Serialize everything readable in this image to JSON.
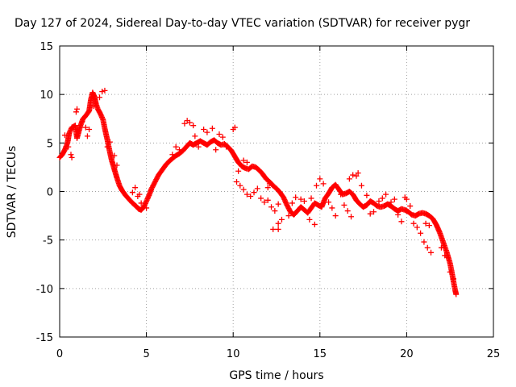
{
  "chart_data": {
    "type": "scatter",
    "title": "Day 127 of 2024, Sidereal Day-to-day VTEC variation (SDTVAR) for receiver pygr",
    "xlabel": "GPS time / hours",
    "ylabel": "SDTVAR / TECUs",
    "xlim": [
      0,
      25
    ],
    "ylim": [
      -15,
      15
    ],
    "xticks": [
      0,
      5,
      10,
      15,
      20,
      25
    ],
    "yticks": [
      -15,
      -10,
      -5,
      0,
      5,
      10,
      15
    ],
    "grid": true,
    "marker": "plus",
    "color": "#ff0000",
    "series": [
      {
        "name": "main",
        "points": [
          [
            0.0,
            3.5
          ],
          [
            0.15,
            3.8
          ],
          [
            0.3,
            4.3
          ],
          [
            0.45,
            5.0
          ],
          [
            0.55,
            6.0
          ],
          [
            0.7,
            6.6
          ],
          [
            0.9,
            6.8
          ],
          [
            1.0,
            5.5
          ],
          [
            1.2,
            6.8
          ],
          [
            1.35,
            7.5
          ],
          [
            1.5,
            7.8
          ],
          [
            1.7,
            8.3
          ],
          [
            1.8,
            9.5
          ],
          [
            1.9,
            10.2
          ],
          [
            2.0,
            9.8
          ],
          [
            2.1,
            9.0
          ],
          [
            2.2,
            8.5
          ],
          [
            2.35,
            8.0
          ],
          [
            2.5,
            7.4
          ],
          [
            2.6,
            6.5
          ],
          [
            2.75,
            5.3
          ],
          [
            2.9,
            4.0
          ],
          [
            3.0,
            3.2
          ],
          [
            3.15,
            2.3
          ],
          [
            3.3,
            1.4
          ],
          [
            3.45,
            0.6
          ],
          [
            3.6,
            0.1
          ],
          [
            3.8,
            -0.4
          ],
          [
            4.0,
            -0.8
          ],
          [
            4.2,
            -1.2
          ],
          [
            4.4,
            -1.5
          ],
          [
            4.55,
            -1.8
          ],
          [
            4.7,
            -1.9
          ],
          [
            4.85,
            -1.6
          ],
          [
            5.0,
            -1.0
          ],
          [
            5.15,
            -0.4
          ],
          [
            5.3,
            0.3
          ],
          [
            5.5,
            1.0
          ],
          [
            5.7,
            1.7
          ],
          [
            5.9,
            2.2
          ],
          [
            6.1,
            2.7
          ],
          [
            6.3,
            3.1
          ],
          [
            6.5,
            3.4
          ],
          [
            6.7,
            3.7
          ],
          [
            6.9,
            3.9
          ],
          [
            7.1,
            4.2
          ],
          [
            7.3,
            4.6
          ],
          [
            7.5,
            5.0
          ],
          [
            7.7,
            4.8
          ],
          [
            7.9,
            5.0
          ],
          [
            8.1,
            5.2
          ],
          [
            8.3,
            5.0
          ],
          [
            8.5,
            4.8
          ],
          [
            8.7,
            5.1
          ],
          [
            8.9,
            5.3
          ],
          [
            9.1,
            5.0
          ],
          [
            9.3,
            4.8
          ],
          [
            9.5,
            4.9
          ],
          [
            9.7,
            4.6
          ],
          [
            9.9,
            4.2
          ],
          [
            10.1,
            3.6
          ],
          [
            10.3,
            3.0
          ],
          [
            10.5,
            2.6
          ],
          [
            10.7,
            2.4
          ],
          [
            10.9,
            2.3
          ],
          [
            11.1,
            2.6
          ],
          [
            11.3,
            2.5
          ],
          [
            11.5,
            2.2
          ],
          [
            11.7,
            1.8
          ],
          [
            11.9,
            1.3
          ],
          [
            12.1,
            1.0
          ],
          [
            12.3,
            0.6
          ],
          [
            12.5,
            0.3
          ],
          [
            12.7,
            -0.1
          ],
          [
            12.9,
            -0.6
          ],
          [
            13.1,
            -1.4
          ],
          [
            13.3,
            -2.1
          ],
          [
            13.5,
            -2.4
          ],
          [
            13.7,
            -2.0
          ],
          [
            13.9,
            -1.6
          ],
          [
            14.1,
            -1.9
          ],
          [
            14.3,
            -2.2
          ],
          [
            14.5,
            -1.7
          ],
          [
            14.7,
            -1.2
          ],
          [
            14.9,
            -1.4
          ],
          [
            15.1,
            -1.6
          ],
          [
            15.3,
            -0.7
          ],
          [
            15.5,
            -0.2
          ],
          [
            15.7,
            0.4
          ],
          [
            15.9,
            0.7
          ],
          [
            16.1,
            0.2
          ],
          [
            16.3,
            -0.3
          ],
          [
            16.5,
            -0.2
          ],
          [
            16.7,
            0.0
          ],
          [
            16.9,
            -0.3
          ],
          [
            17.1,
            -0.9
          ],
          [
            17.3,
            -1.3
          ],
          [
            17.5,
            -1.6
          ],
          [
            17.7,
            -1.4
          ],
          [
            17.9,
            -1.0
          ],
          [
            18.1,
            -1.2
          ],
          [
            18.3,
            -1.5
          ],
          [
            18.5,
            -1.6
          ],
          [
            18.7,
            -1.5
          ],
          [
            18.9,
            -1.3
          ],
          [
            19.1,
            -1.5
          ],
          [
            19.3,
            -1.8
          ],
          [
            19.5,
            -2.0
          ],
          [
            19.7,
            -1.8
          ],
          [
            19.9,
            -1.9
          ],
          [
            20.1,
            -2.1
          ],
          [
            20.3,
            -2.4
          ],
          [
            20.5,
            -2.5
          ],
          [
            20.7,
            -2.3
          ],
          [
            20.9,
            -2.2
          ],
          [
            21.1,
            -2.3
          ],
          [
            21.3,
            -2.5
          ],
          [
            21.5,
            -2.8
          ],
          [
            21.7,
            -3.4
          ],
          [
            21.9,
            -4.2
          ],
          [
            22.1,
            -5.2
          ],
          [
            22.3,
            -6.2
          ],
          [
            22.5,
            -7.4
          ],
          [
            22.6,
            -8.3
          ],
          [
            22.7,
            -9.3
          ],
          [
            22.8,
            -10.2
          ],
          [
            22.85,
            -10.6
          ]
        ]
      },
      {
        "name": "scatter",
        "points": [
          [
            0.3,
            5.8
          ],
          [
            0.5,
            4.6
          ],
          [
            0.7,
            3.5
          ],
          [
            0.65,
            3.8
          ],
          [
            1.0,
            8.5
          ],
          [
            0.95,
            8.2
          ],
          [
            1.3,
            7.2
          ],
          [
            1.5,
            6.6
          ],
          [
            1.6,
            5.7
          ],
          [
            1.7,
            6.4
          ],
          [
            1.95,
            8.8
          ],
          [
            2.3,
            9.7
          ],
          [
            2.45,
            10.3
          ],
          [
            2.6,
            10.4
          ],
          [
            2.75,
            4.6
          ],
          [
            2.9,
            5.1
          ],
          [
            3.15,
            3.7
          ],
          [
            3.3,
            2.7
          ],
          [
            4.2,
            -0.1
          ],
          [
            4.35,
            0.4
          ],
          [
            4.5,
            -0.5
          ],
          [
            4.6,
            -0.3
          ],
          [
            4.7,
            -1.2
          ],
          [
            5.0,
            -1.7
          ],
          [
            6.5,
            3.8
          ],
          [
            6.7,
            4.6
          ],
          [
            6.9,
            4.3
          ],
          [
            7.2,
            7.0
          ],
          [
            7.35,
            7.3
          ],
          [
            7.5,
            7.1
          ],
          [
            7.7,
            6.8
          ],
          [
            7.8,
            5.7
          ],
          [
            8.0,
            4.6
          ],
          [
            8.3,
            6.4
          ],
          [
            8.5,
            6.1
          ],
          [
            8.8,
            6.5
          ],
          [
            9.0,
            4.3
          ],
          [
            9.2,
            5.9
          ],
          [
            9.4,
            5.6
          ],
          [
            9.6,
            4.6
          ],
          [
            10.0,
            6.4
          ],
          [
            10.1,
            6.6
          ],
          [
            10.3,
            2.1
          ],
          [
            10.6,
            3.2
          ],
          [
            10.8,
            3.0
          ],
          [
            10.2,
            1.0
          ],
          [
            10.4,
            0.6
          ],
          [
            10.6,
            0.2
          ],
          [
            10.8,
            -0.3
          ],
          [
            11.0,
            -0.5
          ],
          [
            11.2,
            -0.1
          ],
          [
            11.4,
            0.3
          ],
          [
            11.6,
            -0.7
          ],
          [
            11.8,
            -1.1
          ],
          [
            12.0,
            -0.9
          ],
          [
            12.2,
            -1.6
          ],
          [
            12.0,
            0.4
          ],
          [
            12.1,
            0.8
          ],
          [
            12.4,
            -2.0
          ],
          [
            12.6,
            -1.3
          ],
          [
            12.3,
            -3.9
          ],
          [
            12.6,
            -3.3
          ],
          [
            12.6,
            -3.9
          ],
          [
            12.8,
            -2.9
          ],
          [
            13.2,
            -2.5
          ],
          [
            13.4,
            -1.2
          ],
          [
            13.6,
            -0.6
          ],
          [
            13.9,
            -0.8
          ],
          [
            14.1,
            -1.0
          ],
          [
            14.4,
            -2.9
          ],
          [
            14.7,
            -3.4
          ],
          [
            14.5,
            -0.7
          ],
          [
            14.8,
            0.6
          ],
          [
            15.0,
            1.3
          ],
          [
            15.2,
            0.8
          ],
          [
            15.5,
            -1.1
          ],
          [
            15.7,
            -1.7
          ],
          [
            15.9,
            -2.5
          ],
          [
            16.2,
            -0.3
          ],
          [
            16.4,
            -1.4
          ],
          [
            16.6,
            -2.0
          ],
          [
            16.8,
            -2.6
          ],
          [
            16.7,
            1.3
          ],
          [
            16.9,
            1.7
          ],
          [
            17.1,
            1.6
          ],
          [
            17.2,
            1.9
          ],
          [
            17.4,
            0.6
          ],
          [
            17.7,
            -0.4
          ],
          [
            17.9,
            -2.3
          ],
          [
            18.1,
            -2.1
          ],
          [
            18.4,
            -1.0
          ],
          [
            18.6,
            -0.7
          ],
          [
            18.8,
            -0.3
          ],
          [
            19.1,
            -1.1
          ],
          [
            19.3,
            -0.8
          ],
          [
            19.5,
            -2.4
          ],
          [
            19.7,
            -3.1
          ],
          [
            19.9,
            -0.6
          ],
          [
            20.0,
            -0.8
          ],
          [
            20.2,
            -1.5
          ],
          [
            20.4,
            -3.3
          ],
          [
            20.6,
            -3.7
          ],
          [
            20.8,
            -4.3
          ],
          [
            21.0,
            -5.2
          ],
          [
            21.2,
            -5.8
          ],
          [
            21.4,
            -6.3
          ],
          [
            21.1,
            -3.3
          ],
          [
            21.3,
            -3.5
          ],
          [
            22.0,
            -5.8
          ],
          [
            22.2,
            -6.6
          ],
          [
            22.5,
            -8.3
          ],
          [
            22.7,
            -9.0
          ]
        ]
      }
    ]
  }
}
